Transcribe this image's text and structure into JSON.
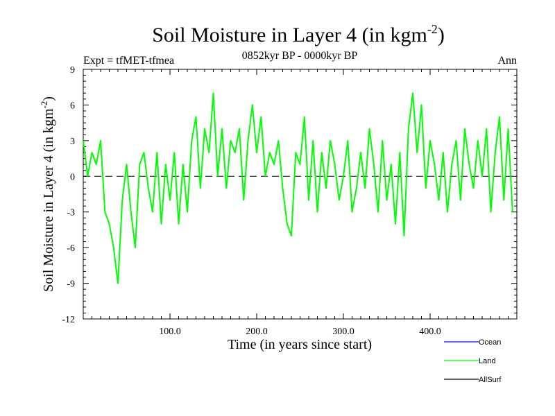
{
  "chart_data": {
    "type": "line",
    "title": "Soil Moisture in Layer 4 (in kgm",
    "title_exponent": "-2",
    "title_suffix": ")",
    "subtitle_left": "Expt = tfMET-tfmea",
    "subtitle_center": "0852kyr BP - 0000kyr BP",
    "subtitle_right": "Ann",
    "xlabel": "Time (in years since start)",
    "ylabel": "Soil Moisture in Layer 4 (in kgm",
    "ylabel_exponent": "-2",
    "ylabel_suffix": ")",
    "xlim": [
      0,
      500
    ],
    "ylim": [
      -12,
      9
    ],
    "x_ticks": [
      100,
      200,
      300,
      400
    ],
    "x_tick_labels": [
      "100.0",
      "200.0",
      "300.0",
      "400.0"
    ],
    "y_ticks": [
      9,
      6,
      3,
      0,
      -3,
      -6,
      -9,
      -12
    ],
    "y_tick_labels": [
      "9",
      "6",
      "3",
      "0",
      "-3",
      "-6",
      "-9",
      "-12"
    ],
    "zero_line": "dashed",
    "legend": [
      {
        "name": "Ocean",
        "color": "#0000ff"
      },
      {
        "name": "Land",
        "color": "#00ff00"
      },
      {
        "name": "AllSurf",
        "color": "#000000"
      }
    ],
    "series": [
      {
        "name": "Land",
        "color": "#00ff00",
        "x": [
          0,
          5,
          10,
          15,
          20,
          25,
          30,
          35,
          40,
          45,
          50,
          55,
          60,
          65,
          70,
          75,
          80,
          85,
          90,
          95,
          100,
          105,
          110,
          115,
          120,
          125,
          130,
          135,
          140,
          145,
          150,
          155,
          160,
          165,
          170,
          175,
          180,
          185,
          190,
          195,
          200,
          205,
          210,
          215,
          220,
          225,
          230,
          235,
          240,
          245,
          250,
          255,
          260,
          265,
          270,
          275,
          280,
          285,
          290,
          295,
          300,
          305,
          310,
          315,
          320,
          325,
          330,
          335,
          340,
          345,
          350,
          355,
          360,
          365,
          370,
          375,
          380,
          385,
          390,
          395,
          400,
          405,
          410,
          415,
          420,
          425,
          430,
          435,
          440,
          445,
          450,
          455,
          460,
          465,
          470,
          475,
          480,
          485,
          490,
          495
        ],
        "values": [
          3,
          0,
          2,
          1,
          3,
          -3,
          -4,
          -6,
          -9,
          -2,
          1,
          -3,
          -6,
          1,
          2,
          -1,
          -3,
          2,
          -4,
          1,
          -2,
          2,
          -4,
          1,
          -3,
          3,
          5,
          -1,
          4,
          2,
          7,
          0,
          4,
          -1,
          3,
          2,
          4,
          -2,
          3,
          6,
          2,
          5,
          0,
          2,
          1,
          3,
          -1,
          -4,
          -5,
          2,
          1,
          5,
          -2,
          3,
          -3,
          2,
          -1,
          3,
          1,
          -2,
          0,
          3,
          -3,
          -1,
          2,
          -1,
          4,
          1,
          -3,
          3,
          -2,
          1,
          -4,
          2,
          -5,
          4,
          7,
          2,
          6,
          -1,
          3,
          1,
          -2,
          2,
          -3,
          1,
          3,
          -2,
          4,
          1,
          -1,
          3,
          0,
          4,
          -3,
          2,
          5,
          -2,
          4,
          -3
        ]
      }
    ]
  }
}
